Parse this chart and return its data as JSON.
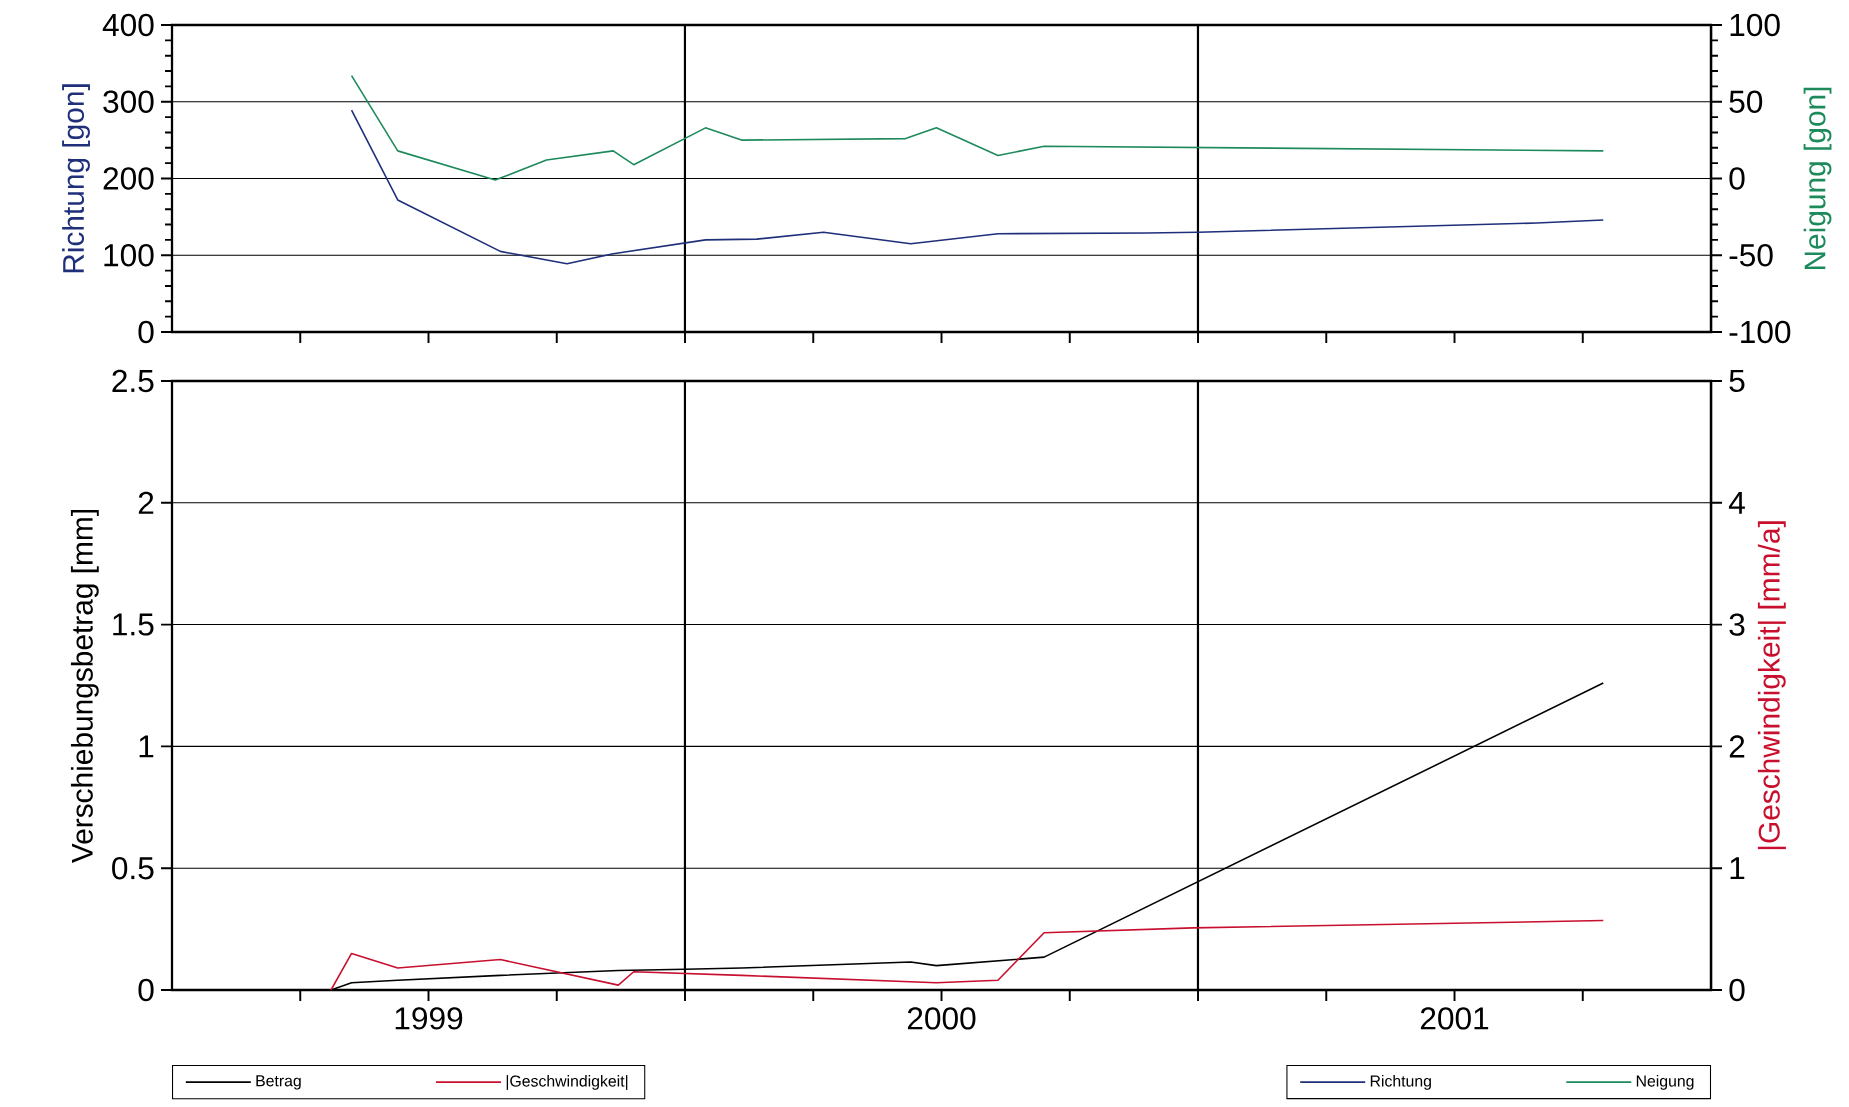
{
  "chart_data": [
    {
      "type": "line",
      "ylabel": "Richtung [gon]",
      "y2label": "Neigung [gon]",
      "xlim": [
        1999,
        2002
      ],
      "xticks": [
        {
          "value": 1999.25,
          "label": null
        },
        {
          "value": 1999.5,
          "label": null
        },
        {
          "value": 1999.75,
          "label": null
        },
        {
          "value": 2000,
          "label": null
        },
        {
          "value": 2000.25,
          "label": null
        },
        {
          "value": 2000.5,
          "label": null
        },
        {
          "value": 2000.75,
          "label": null
        },
        {
          "value": 2001,
          "label": null
        },
        {
          "value": 2001.25,
          "label": null
        },
        {
          "value": 2001.5,
          "label": null
        },
        {
          "value": 2001.75,
          "label": null
        }
      ],
      "ylim": [
        0,
        400
      ],
      "yticks": [
        0,
        100,
        200,
        300,
        400
      ],
      "y2lim": [
        -100,
        100
      ],
      "y2ticks": [
        -100,
        -50,
        0,
        50,
        100
      ],
      "grid": "y",
      "tick_labels": "y",
      "legend": "bottom right",
      "ref_lines": [
        {
          "axis": "x",
          "value": 2000,
          "color": "#000000"
        },
        {
          "axis": "x",
          "value": 2001,
          "color": "#000000"
        }
      ],
      "series": [
        {
          "name": "Richtung",
          "color": "#1f2f7a",
          "x": [
            1999.35,
            1999.44,
            1999.64,
            1999.77,
            1999.86,
            2000.04,
            2000.14,
            2000.27,
            2000.44,
            2000.61,
            2000.9,
            2001.0,
            2001.66,
            2001.79
          ],
          "values": [
            289,
            172,
            105,
            89,
            102,
            120,
            121,
            130,
            115,
            128,
            129,
            130,
            142,
            146
          ]
        },
        {
          "name": "Neigung",
          "color": "#1e8a5c",
          "axis": "y2",
          "x": [
            1999.35,
            1999.44,
            1999.63,
            1999.73,
            1999.86,
            1999.9,
            2000.04,
            2000.11,
            2000.43,
            2000.49,
            2000.61,
            2000.7,
            2001.79
          ],
          "values": [
            67,
            18,
            -1,
            12,
            18,
            9,
            33,
            25,
            26,
            33,
            15,
            21,
            18
          ]
        }
      ]
    },
    {
      "type": "line",
      "ylabel": "Verschiebungsbetrag [mm]",
      "y2label": "|Geschwindigkeit| [mm/a]",
      "xlim": [
        1999,
        2002
      ],
      "xticks": [
        {
          "value": 1999.25,
          "label": null
        },
        {
          "value": 1999.5,
          "label": "1999"
        },
        {
          "value": 1999.75,
          "label": null
        },
        {
          "value": 2000,
          "label": null
        },
        {
          "value": 2000.25,
          "label": null
        },
        {
          "value": 2000.5,
          "label": "2000"
        },
        {
          "value": 2000.75,
          "label": null
        },
        {
          "value": 2001,
          "label": null
        },
        {
          "value": 2001.25,
          "label": null
        },
        {
          "value": 2001.5,
          "label": "2001"
        },
        {
          "value": 2001.75,
          "label": null
        }
      ],
      "ylim": [
        0,
        2.5
      ],
      "yticks": [
        0,
        0.5,
        1,
        1.5,
        2,
        2.5
      ],
      "y2lim": [
        0,
        5
      ],
      "y2ticks": [
        0,
        1,
        2,
        3,
        4,
        5
      ],
      "grid": "y",
      "legend": "bottom left",
      "ref_lines": [
        {
          "axis": "x",
          "value": 2000,
          "color": "#000000"
        },
        {
          "axis": "x",
          "value": 2001,
          "color": "#000000"
        }
      ],
      "series": [
        {
          "name": "Betrag",
          "color": "#000000",
          "x": [
            1999.31,
            1999.35,
            1999.44,
            1999.64,
            1999.87,
            2000.0,
            2000.11,
            2000.44,
            2000.49,
            2000.7,
            2001.79
          ],
          "values": [
            0,
            0.03,
            0.04,
            0.06,
            0.08,
            0.085,
            0.09,
            0.115,
            0.1,
            0.135,
            1.26
          ]
        },
        {
          "name": "|Geschwindigkeit|",
          "color": "#c8102e",
          "axis": "y2",
          "x": [
            1999.31,
            1999.35,
            1999.44,
            1999.64,
            1999.87,
            1999.9,
            2000.11,
            2000.49,
            2000.61,
            2000.7,
            2000.99,
            2001.79
          ],
          "values": [
            0,
            0.3,
            0.18,
            0.25,
            0.04,
            0.15,
            0.12,
            0.06,
            0.08,
            0.47,
            0.51,
            0.57
          ]
        }
      ]
    }
  ]
}
